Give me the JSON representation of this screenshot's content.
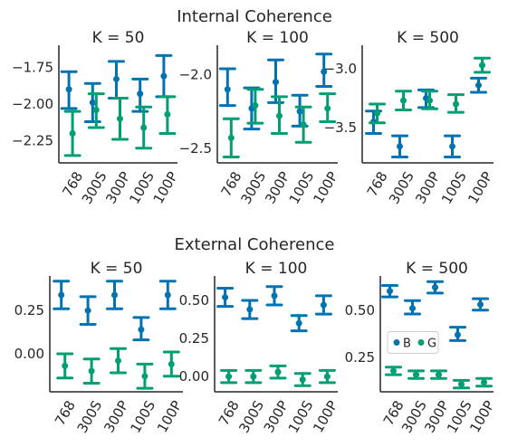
{
  "rows": [
    {
      "title": "Internal Coherence"
    },
    {
      "title": "External Coherence"
    }
  ],
  "colors": {
    "B": "#0072b2",
    "G": "#009e73",
    "axis": "#262626"
  },
  "chart_data": [
    {
      "type": "errorbar",
      "subtitle": "K = 50",
      "categories": [
        "768",
        "300S",
        "300P",
        "100S",
        "100P"
      ],
      "ylim": [
        -2.4,
        -1.6
      ],
      "yticks": [
        -1.75,
        -2.0,
        -2.25
      ],
      "ytick_labels": [
        "−1.75",
        "−2.00",
        "−2.25"
      ],
      "series": [
        {
          "name": "B",
          "mean": [
            -1.9,
            -1.99,
            -1.83,
            -1.93,
            -1.81
          ],
          "low": [
            -2.03,
            -2.12,
            -1.96,
            -2.05,
            -1.95
          ],
          "high": [
            -1.78,
            -1.86,
            -1.71,
            -1.83,
            -1.67
          ]
        },
        {
          "name": "G",
          "mean": [
            -2.2,
            -2.04,
            -2.1,
            -2.16,
            -2.07
          ],
          "low": [
            -2.35,
            -2.16,
            -2.24,
            -2.3,
            -2.2
          ],
          "high": [
            -2.05,
            -1.93,
            -1.96,
            -2.02,
            -1.95
          ]
        }
      ]
    },
    {
      "type": "errorbar",
      "subtitle": "K = 100",
      "categories": [
        "768",
        "300S",
        "300P",
        "100S",
        "100P"
      ],
      "ylim": [
        -2.6,
        -1.8
      ],
      "yticks": [
        -2.0,
        -2.5
      ],
      "ytick_labels": [
        "−2.0",
        "−2.5"
      ],
      "series": [
        {
          "name": "B",
          "mean": [
            -2.1,
            -2.23,
            -2.05,
            -2.25,
            -1.98
          ],
          "low": [
            -2.21,
            -2.37,
            -2.19,
            -2.35,
            -2.08
          ],
          "high": [
            -1.96,
            -2.09,
            -1.9,
            -2.14,
            -1.86
          ]
        },
        {
          "name": "G",
          "mean": [
            -2.43,
            -2.21,
            -2.28,
            -2.34,
            -2.23
          ],
          "low": [
            -2.56,
            -2.33,
            -2.4,
            -2.46,
            -2.32
          ],
          "high": [
            -2.3,
            -2.1,
            -2.15,
            -2.22,
            -2.13
          ]
        }
      ]
    },
    {
      "type": "errorbar",
      "subtitle": "K = 500",
      "categories": [
        "768",
        "300S",
        "300P",
        "100S",
        "100P"
      ],
      "ylim": [
        -3.8,
        -2.8
      ],
      "yticks": [
        -3.0,
        -3.5
      ],
      "ytick_labels": [
        "−3.0",
        "−3.5"
      ],
      "series": [
        {
          "name": "B",
          "mean": [
            -3.45,
            -3.66,
            -3.25,
            -3.66,
            -3.14
          ],
          "low": [
            -3.55,
            -3.75,
            -3.33,
            -3.75,
            -3.2
          ],
          "high": [
            -3.36,
            -3.57,
            -3.18,
            -3.57,
            -3.08
          ]
        },
        {
          "name": "G",
          "mean": [
            -3.38,
            -3.27,
            -3.27,
            -3.3,
            -2.97
          ],
          "low": [
            -3.46,
            -3.35,
            -3.34,
            -3.37,
            -3.03
          ],
          "high": [
            -3.3,
            -3.19,
            -3.19,
            -3.22,
            -2.91
          ]
        }
      ]
    },
    {
      "type": "errorbar",
      "subtitle": "K = 50",
      "categories": [
        "768",
        "300S",
        "300P",
        "100S",
        "100P"
      ],
      "ylim": [
        -0.22,
        0.45
      ],
      "yticks": [
        0.25,
        0.0
      ],
      "ytick_labels": [
        "0.25",
        "0.00"
      ],
      "series": [
        {
          "name": "B",
          "mean": [
            0.34,
            0.25,
            0.34,
            0.14,
            0.34
          ],
          "low": [
            0.26,
            0.17,
            0.26,
            0.08,
            0.26
          ],
          "high": [
            0.42,
            0.33,
            0.42,
            0.21,
            0.42
          ]
        },
        {
          "name": "G",
          "mean": [
            -0.07,
            -0.1,
            -0.04,
            -0.13,
            -0.06
          ],
          "low": [
            -0.14,
            -0.17,
            -0.11,
            -0.2,
            -0.13
          ],
          "high": [
            0.0,
            -0.03,
            0.03,
            -0.06,
            0.01
          ]
        }
      ]
    },
    {
      "type": "errorbar",
      "subtitle": "K = 100",
      "categories": [
        "768",
        "300S",
        "300P",
        "100S",
        "100P"
      ],
      "ylim": [
        -0.1,
        0.66
      ],
      "yticks": [
        0.5,
        0.25,
        0.0
      ],
      "ytick_labels": [
        "0.50",
        "0.25",
        "0.00"
      ],
      "series": [
        {
          "name": "B",
          "mean": [
            0.52,
            0.44,
            0.53,
            0.35,
            0.47
          ],
          "low": [
            0.46,
            0.38,
            0.47,
            0.3,
            0.41
          ],
          "high": [
            0.58,
            0.5,
            0.59,
            0.4,
            0.53
          ]
        },
        {
          "name": "G",
          "mean": [
            0.0,
            0.0,
            0.03,
            -0.02,
            0.0
          ],
          "low": [
            -0.04,
            -0.04,
            -0.01,
            -0.06,
            -0.04
          ],
          "high": [
            0.04,
            0.04,
            0.07,
            0.02,
            0.04
          ]
        }
      ]
    },
    {
      "type": "errorbar",
      "subtitle": "K = 500",
      "categories": [
        "768",
        "300S",
        "300P",
        "100S",
        "100P"
      ],
      "ylim": [
        0.07,
        0.68
      ],
      "yticks": [
        0.5,
        0.25
      ],
      "ytick_labels": [
        "0.50",
        "0.25"
      ],
      "legend": {
        "position": "center-left",
        "entries": [
          "B",
          "G"
        ]
      },
      "series": [
        {
          "name": "B",
          "mean": [
            0.6,
            0.51,
            0.62,
            0.37,
            0.53
          ],
          "low": [
            0.57,
            0.48,
            0.59,
            0.34,
            0.5
          ],
          "high": [
            0.63,
            0.55,
            0.65,
            0.41,
            0.56
          ]
        },
        {
          "name": "G",
          "mean": [
            0.18,
            0.16,
            0.16,
            0.11,
            0.12
          ],
          "low": [
            0.16,
            0.14,
            0.14,
            0.09,
            0.1
          ],
          "high": [
            0.2,
            0.18,
            0.18,
            0.13,
            0.14
          ]
        }
      ]
    }
  ]
}
